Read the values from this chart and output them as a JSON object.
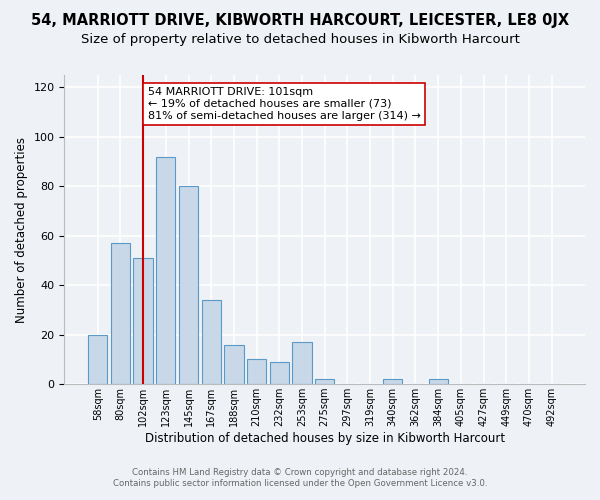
{
  "title": "54, MARRIOTT DRIVE, KIBWORTH HARCOURT, LEICESTER, LE8 0JX",
  "subtitle": "Size of property relative to detached houses in Kibworth Harcourt",
  "xlabel": "Distribution of detached houses by size in Kibworth Harcourt",
  "ylabel": "Number of detached properties",
  "bar_labels": [
    "58sqm",
    "80sqm",
    "102sqm",
    "123sqm",
    "145sqm",
    "167sqm",
    "188sqm",
    "210sqm",
    "232sqm",
    "253sqm",
    "275sqm",
    "297sqm",
    "319sqm",
    "340sqm",
    "362sqm",
    "384sqm",
    "405sqm",
    "427sqm",
    "449sqm",
    "470sqm",
    "492sqm"
  ],
  "bar_heights": [
    20,
    57,
    51,
    92,
    80,
    34,
    16,
    10,
    9,
    17,
    2,
    0,
    0,
    2,
    0,
    2,
    0,
    0,
    0,
    0,
    0
  ],
  "bar_color": "#c8d8e8",
  "bar_edge_color": "#5a9ac8",
  "ylim": [
    0,
    125
  ],
  "yticks": [
    0,
    20,
    40,
    60,
    80,
    100,
    120
  ],
  "vline_x": 2,
  "vline_color": "#cc0000",
  "annotation_text": "54 MARRIOTT DRIVE: 101sqm\n← 19% of detached houses are smaller (73)\n81% of semi-detached houses are larger (314) →",
  "annotation_box_color": "#ffffff",
  "annotation_box_edge": "#cc0000",
  "footer_line1": "Contains HM Land Registry data © Crown copyright and database right 2024.",
  "footer_line2": "Contains public sector information licensed under the Open Government Licence v3.0.",
  "background_color": "#eef2f6",
  "grid_color": "#ffffff",
  "title_fontsize": 10.5,
  "subtitle_fontsize": 9.5
}
